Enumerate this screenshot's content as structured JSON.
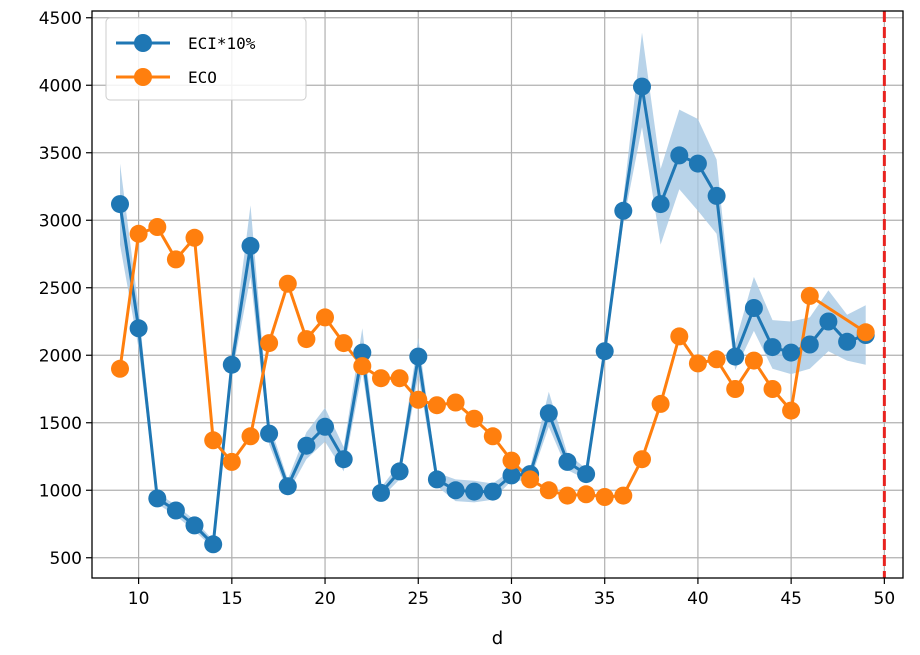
{
  "chart_data": {
    "type": "line",
    "title": "",
    "xlabel": "d",
    "ylabel": "",
    "xlim": [
      7.5,
      51.0
    ],
    "ylim": [
      350,
      4550
    ],
    "xticks": [
      10,
      15,
      20,
      25,
      30,
      35,
      40,
      45,
      50
    ],
    "yticks": [
      500,
      1000,
      1500,
      2000,
      2500,
      3000,
      3500,
      4000,
      4500
    ],
    "grid": true,
    "legend_position": "top-left",
    "vline": {
      "x": 50,
      "color": "#e8231f",
      "style": "dashed"
    },
    "series": [
      {
        "name": "ECI*10%",
        "color": "#1f77b4",
        "band_color": "#a6c8e3",
        "x": [
          9,
          10,
          11,
          12,
          13,
          14,
          15,
          16,
          17,
          18,
          19,
          20,
          21,
          22,
          23,
          24,
          25,
          26,
          27,
          28,
          29,
          30,
          31,
          32,
          33,
          34,
          35,
          36,
          37,
          38,
          39,
          40,
          41,
          42,
          43,
          44,
          45,
          46,
          47,
          48,
          49
        ],
        "values": [
          3120,
          2200,
          940,
          850,
          740,
          600,
          1930,
          2810,
          1420,
          1030,
          1330,
          1470,
          1230,
          2020,
          980,
          1140,
          1990,
          1080,
          1000,
          990,
          990,
          1110,
          1120,
          1570,
          1210,
          1120,
          2030,
          3070,
          3990,
          3120,
          3480,
          3420,
          3180,
          1990,
          2350,
          2060,
          2020,
          2080,
          2250,
          2100,
          2150
        ],
        "lower": [
          2820,
          2050,
          900,
          810,
          700,
          570,
          1850,
          2580,
          1340,
          980,
          1230,
          1360,
          1140,
          1880,
          940,
          1080,
          1850,
          1030,
          920,
          910,
          930,
          1070,
          1070,
          1470,
          1150,
          1080,
          1970,
          2980,
          3690,
          2820,
          3230,
          3070,
          2900,
          1890,
          2180,
          1900,
          1860,
          1900,
          2030,
          1960,
          1930
        ],
        "upper": [
          3420,
          2350,
          980,
          890,
          780,
          630,
          2010,
          3110,
          1500,
          1080,
          1430,
          1610,
          1320,
          2200,
          1020,
          1200,
          2130,
          1130,
          1080,
          1070,
          1050,
          1150,
          1170,
          1730,
          1270,
          1160,
          2090,
          3160,
          4390,
          3380,
          3820,
          3750,
          3450,
          2090,
          2580,
          2260,
          2250,
          2280,
          2480,
          2300,
          2370
        ]
      },
      {
        "name": "ECO",
        "color": "#ff7f0e",
        "x": [
          9,
          10,
          11,
          12,
          13,
          14,
          15,
          16,
          17,
          18,
          19,
          20,
          21,
          22,
          23,
          24,
          25,
          26,
          27,
          28,
          29,
          30,
          31,
          32,
          33,
          34,
          35,
          36,
          37,
          38,
          39,
          40,
          41,
          42,
          43,
          44,
          45,
          46,
          49
        ],
        "values": [
          1900,
          2900,
          2950,
          2710,
          2870,
          1370,
          1210,
          1400,
          2090,
          2530,
          2120,
          2280,
          2090,
          1920,
          1830,
          1830,
          1670,
          1630,
          1650,
          1530,
          1400,
          1220,
          1080,
          1000,
          960,
          970,
          950,
          960,
          1230,
          1640,
          2140,
          1940,
          1970,
          1750,
          1960,
          1750,
          1590,
          2440,
          2170
        ]
      }
    ]
  }
}
